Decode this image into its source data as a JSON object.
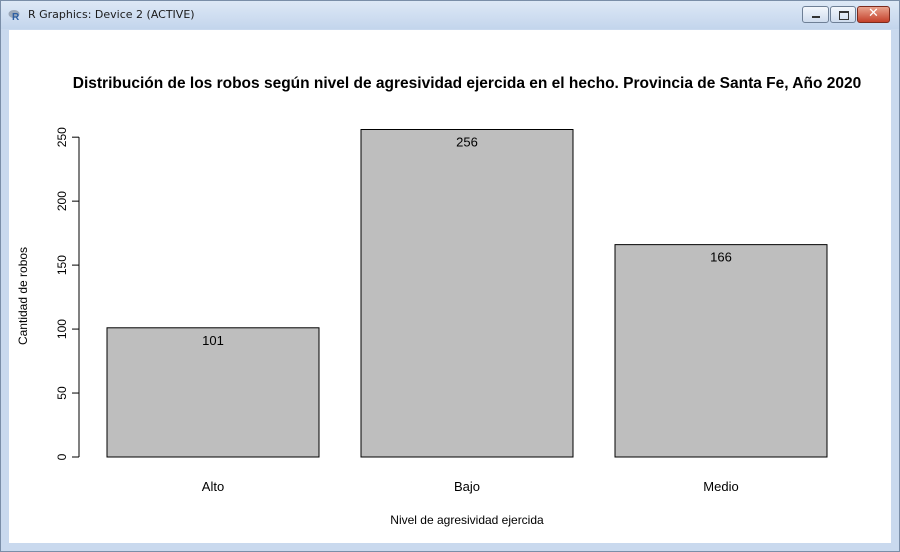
{
  "window": {
    "title": "R Graphics: Device 2 (ACTIVE)",
    "icon": "r-logo-icon",
    "controls": {
      "minimize": "minimize-icon",
      "maximize": "maximize-icon",
      "close": "✕"
    }
  },
  "chart_data": {
    "type": "bar",
    "title": "Distribución de los robos según nivel de agresividad ejercida en el hecho. Provincia de Santa Fe, Año 2020",
    "xlabel": "Nivel de agresividad ejercida",
    "ylabel": "Cantidad de robos",
    "categories": [
      "Alto",
      "Bajo",
      "Medio"
    ],
    "values": [
      101,
      256,
      166
    ],
    "data_labels": [
      "101",
      "256",
      "166"
    ],
    "ylim": [
      0,
      256
    ],
    "yticks": [
      0,
      50,
      100,
      150,
      200,
      250
    ],
    "ytick_labels": [
      "0",
      "50",
      "100",
      "150",
      "200",
      "250"
    ],
    "bar_color": "#bebebe",
    "grid": false,
    "legend": "none"
  }
}
